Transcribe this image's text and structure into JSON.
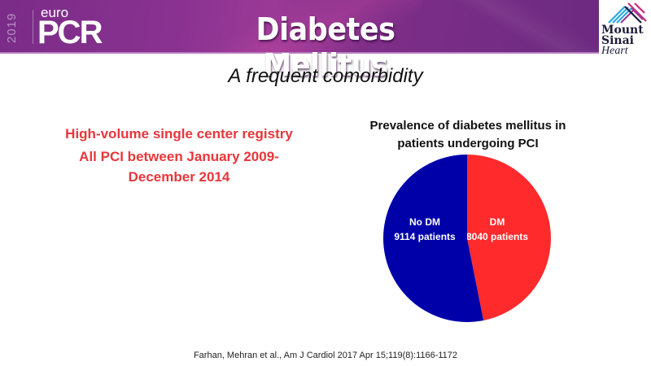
{
  "header": {
    "logo_year": "2019",
    "logo_euro": "euro",
    "logo_pcr": "PCR",
    "title": "Diabetes Mellitus",
    "partner_logo": {
      "line1": "Mount",
      "line2": "Sinai",
      "line3": "Heart"
    },
    "banner_color": "#7e2e88"
  },
  "subtitle": "A frequent comorbidity",
  "left_text": {
    "line1": "High-volume single center registry",
    "line2": "All PCI between January 2009-",
    "line3": "December 2014",
    "color": "#e8363b"
  },
  "chart_data": {
    "type": "pie",
    "title": "Prevalence of diabetes mellitus in patients undergoing PCI",
    "title_lines": [
      "Prevalence of diabetes mellitus in",
      "patients undergoing PCI"
    ],
    "start_angle": "12 o'clock",
    "direction": "clockwise",
    "legend": "none",
    "slices": [
      {
        "name": "DM",
        "value": 8040,
        "label_line1": "DM",
        "label_line2": "8040 patients",
        "color": "#fe2a2c"
      },
      {
        "name": "No DM",
        "value": 9114,
        "label_line1": "No DM",
        "label_line2": "9114 patients",
        "color": "#0000a8"
      }
    ]
  },
  "citation": "Farhan, Mehran et al., Am J Cardiol 2017 Apr 15;119(8):1166-1172"
}
